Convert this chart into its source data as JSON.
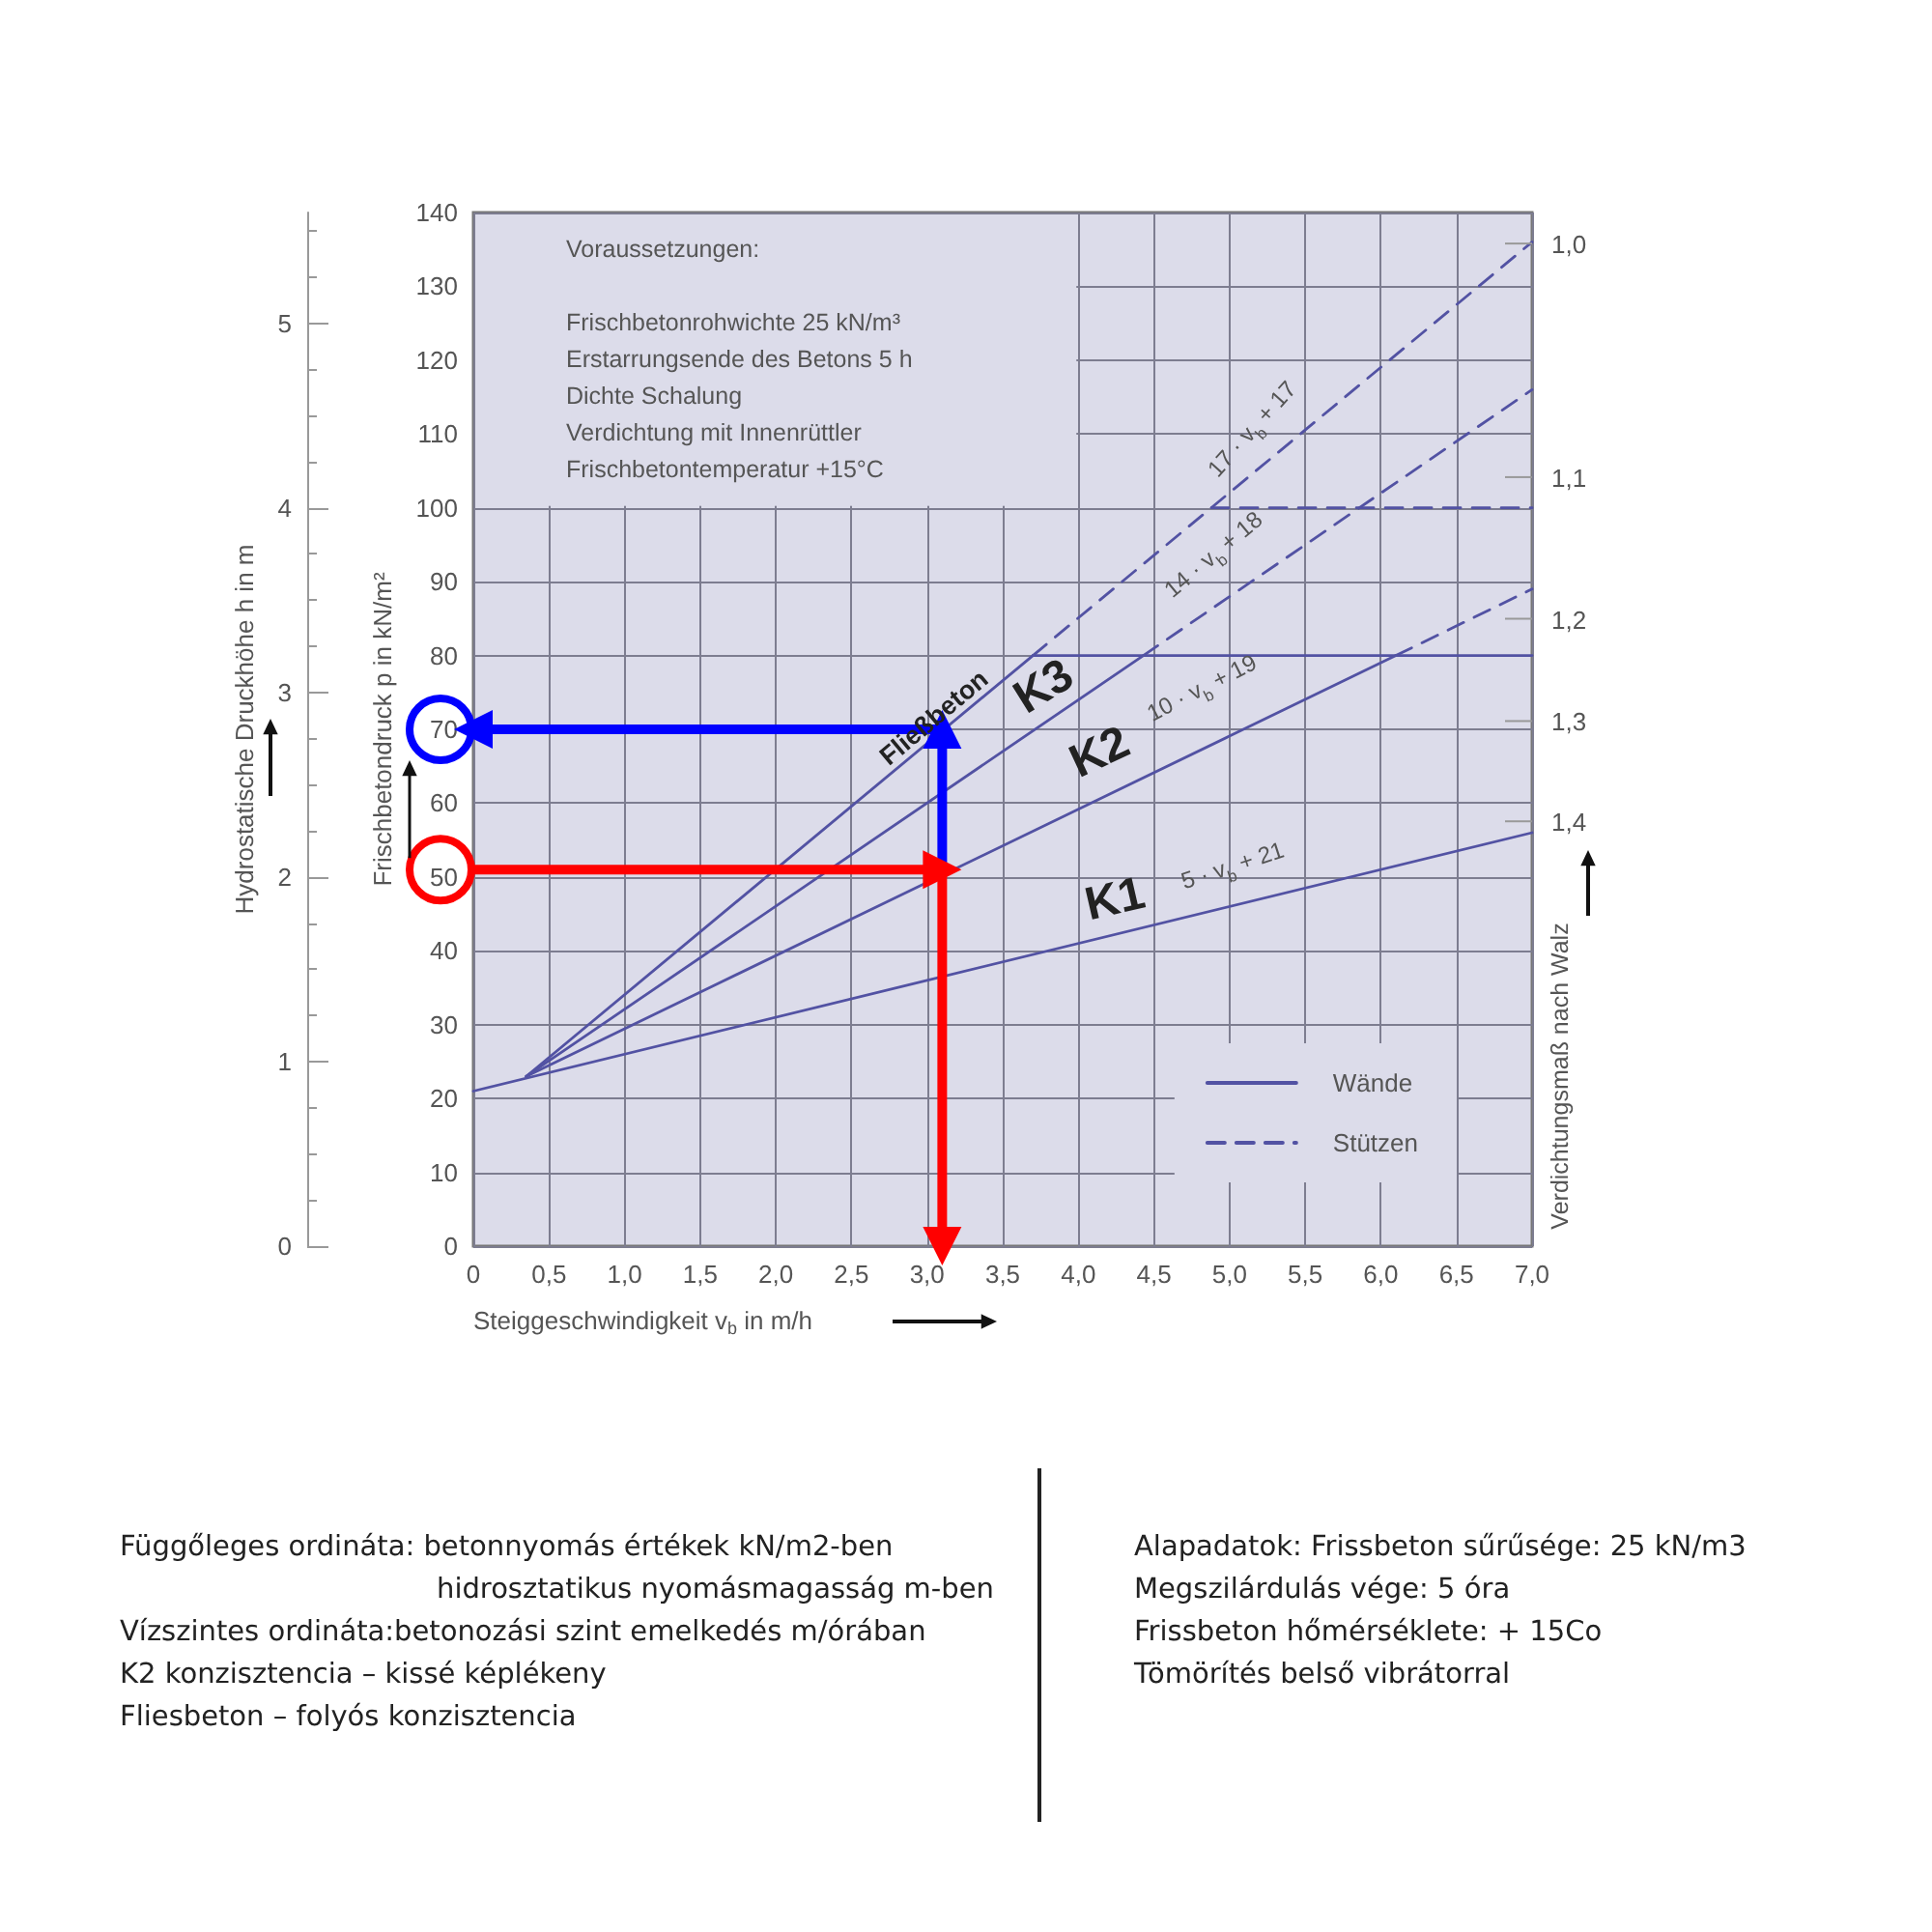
{
  "chart_data": {
    "type": "line",
    "xlabel": "Steiggeschwindigkeit v$_{b}$ in m/h",
    "ylabel": "Frischbetondruck p in kN/m²",
    "y2label": "Hydrostatische Druckhöhe h in m",
    "y3label": "Verdichtungsmaß nach Walz",
    "xlim": [
      0,
      7
    ],
    "xticks": [
      0,
      {
        "value": 0.5,
        "label": "0,5"
      },
      {
        "value": 1,
        "label": "1,0"
      },
      {
        "value": 1.5,
        "label": "1,5"
      },
      {
        "value": 2,
        "label": "2,0"
      },
      {
        "value": 2.5,
        "label": "2,5"
      },
      {
        "value": 3,
        "label": "3,0"
      },
      {
        "value": 3.5,
        "label": "3,5"
      },
      {
        "value": 4,
        "label": "4,0"
      },
      {
        "value": 4.5,
        "label": "4,5"
      },
      {
        "value": 5,
        "label": "5,0"
      },
      {
        "value": 5.5,
        "label": "5,5"
      },
      {
        "value": 6,
        "label": "6,0"
      },
      {
        "value": 6.5,
        "label": "6,5"
      },
      {
        "value": 7,
        "label": "7,0"
      }
    ],
    "ylim": [
      0,
      140
    ],
    "yticks": [
      0,
      10,
      20,
      30,
      40,
      50,
      60,
      70,
      80,
      90,
      100,
      110,
      120,
      130,
      140
    ],
    "y2lim": [
      0,
      5.6
    ],
    "y2ticks": [
      0,
      1,
      2,
      3,
      4,
      5
    ],
    "grid": true,
    "legend": "bottom right",
    "line_style": "solid",
    "series": [
      {
        "name": "Wände",
        "color": "#5252a3",
        "x": [
          0,
          7
        ],
        "values": [
          21,
          56
        ]
      },
      {
        "color": "#5252a3",
        "x": [
          0.35,
          6.1
        ],
        "values": [
          23,
          80
        ]
      },
      {
        "color": "#5252a3",
        "x": [
          0.35,
          4.43
        ],
        "values": [
          23,
          80
        ]
      },
      {
        "color": "#5252a3",
        "x": [
          0.35,
          3.7
        ],
        "values": [
          23,
          80
        ]
      },
      {
        "color": "#5252a3",
        "x": [
          3.7,
          7
        ],
        "values": [
          80,
          80
        ]
      },
      {
        "name": "Stützen",
        "color": "#5252a3",
        "line_style": "dashed",
        "x": [
          6.1,
          7
        ],
        "values": [
          80,
          89
        ]
      },
      {
        "color": "#5252a3",
        "line_style": "dashed",
        "x": [
          4.43,
          7
        ],
        "values": [
          80,
          116
        ]
      },
      {
        "color": "#5252a3",
        "line_style": "dashed",
        "x": [
          3.7,
          7
        ],
        "values": [
          80,
          136
        ]
      },
      {
        "color": "#5252a3",
        "line_style": "dashed",
        "x": [
          4.88,
          7
        ],
        "values": [
          100,
          100
        ]
      },
      {
        "color": "#ff0000",
        "marker": "triangle",
        "x": [
          0,
          3.1
        ],
        "values": [
          51,
          51
        ]
      },
      {
        "color": "#ff0000",
        "marker": "triangle",
        "x": [
          3.1,
          3.1
        ],
        "values": [
          51,
          0
        ]
      },
      {
        "color": "#0000ff",
        "marker": "triangle",
        "x": [
          3.1,
          3.1
        ],
        "values": [
          51,
          70
        ]
      },
      {
        "color": "#0000ff",
        "marker": "triangle",
        "x": [
          3.1,
          0
        ],
        "values": [
          70,
          70
        ]
      }
    ],
    "annotations": [
      "Voraussetzungen:",
      "Frischbetonrohwichte 25 kN/m³",
      "Erstarrungsende des Betons 5 h",
      "Dichte Schalung",
      "Verdichtung mit Innenrüttler",
      "Frischbetontemperatur +15°C",
      "1,0",
      "1,1",
      "1,2",
      "1,3",
      "1,4",
      "Fließbeton",
      "K3",
      "K2",
      "K1",
      "17 · v$_{b}$ + 17",
      "14 · v$_{b}$ + 18",
      "10 · v$_{b}$ + 19",
      "5 · v$_{b}$ + 21",
      "Függőleges ordináta: betonnyomás értékek kN/m2-ben",
      "hidrosztatikus nyomásmagasság m-ben",
      "Vízszintes ordináta:betonozási szint emelkedés m/órában",
      "K2 konzisztencia – kissé képlékeny",
      "Fliesbeton – folyós konzisztencia",
      "Alapadatok: Frissbeton sűrűsége: 25 kN/m3",
      "Megszilárdulás vége: 5 óra",
      "Frissbeton hőmérséklete: + 15Co",
      "Tömörítés belső vibrátorral"
    ]
  }
}
